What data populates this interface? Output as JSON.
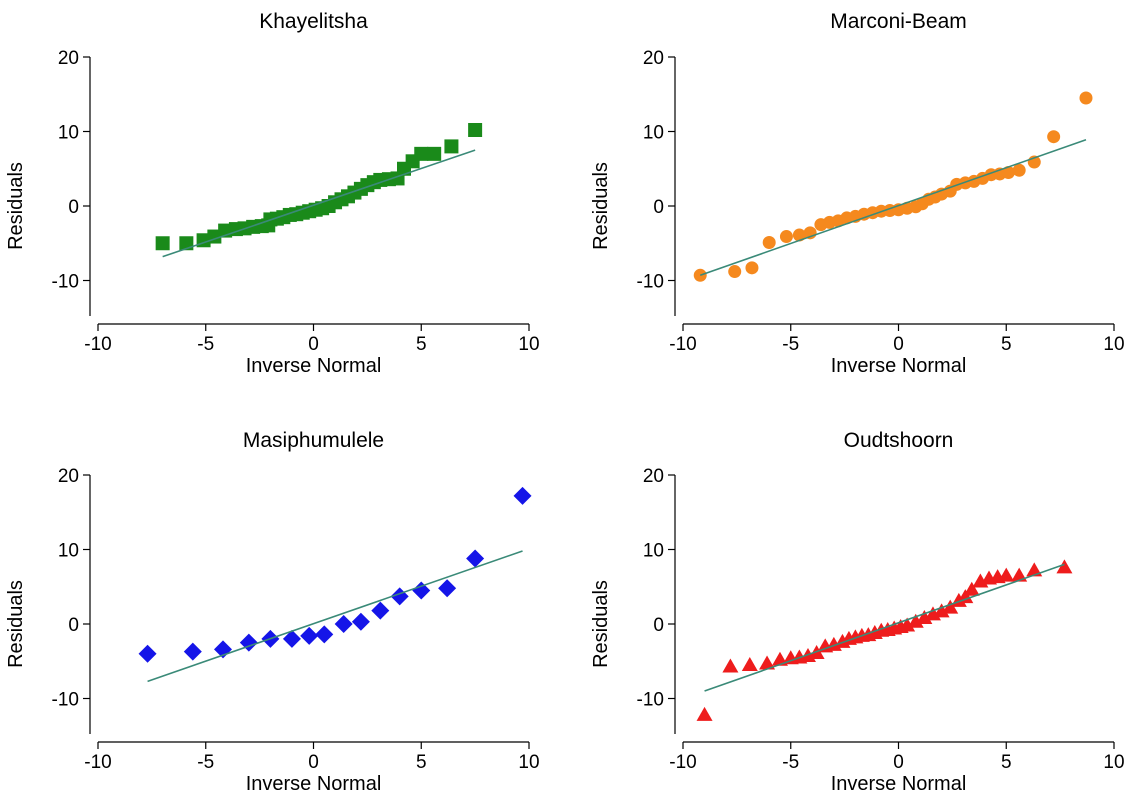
{
  "figure": {
    "fit_line_color": "#3a8a78"
  },
  "chart_data": [
    {
      "type": "scatter",
      "title": "Khayelitsha",
      "xlabel": "Inverse Normal",
      "ylabel": "Residuals",
      "xlim": [
        -10,
        10
      ],
      "ylim": [
        -10,
        20
      ],
      "xticks": [
        -10,
        -5,
        0,
        5,
        10
      ],
      "yticks": [
        -10,
        0,
        10,
        20
      ],
      "marker": "square",
      "color": "#1a8a1a",
      "fit_line": [
        [
          -7,
          -6.8
        ],
        [
          7.5,
          7.5
        ]
      ],
      "points": [
        [
          -7,
          -5
        ],
        [
          -5.9,
          -5
        ],
        [
          -5.1,
          -4.6
        ],
        [
          -4.6,
          -4.1
        ],
        [
          -4.1,
          -3.3
        ],
        [
          -3.6,
          -3.1
        ],
        [
          -3.2,
          -3
        ],
        [
          -2.8,
          -2.8
        ],
        [
          -2.4,
          -2.7
        ],
        [
          -2.1,
          -2.6
        ],
        [
          -2,
          -1.8
        ],
        [
          -1.7,
          -1.7
        ],
        [
          -1.4,
          -1.5
        ],
        [
          -1.1,
          -1.2
        ],
        [
          -0.8,
          -1.1
        ],
        [
          -0.5,
          -0.9
        ],
        [
          -0.2,
          -0.7
        ],
        [
          0.1,
          -0.5
        ],
        [
          0.4,
          -0.3
        ],
        [
          0.7,
          0
        ],
        [
          1,
          0.5
        ],
        [
          1.3,
          0.9
        ],
        [
          1.6,
          1.3
        ],
        [
          1.9,
          1.8
        ],
        [
          2.2,
          2.3
        ],
        [
          2.5,
          2.8
        ],
        [
          2.8,
          3.2
        ],
        [
          3.1,
          3.5
        ],
        [
          3.5,
          3.6
        ],
        [
          3.9,
          3.7
        ],
        [
          4.2,
          5
        ],
        [
          4.6,
          6
        ],
        [
          5,
          7
        ],
        [
          5.6,
          7
        ],
        [
          6.4,
          8
        ],
        [
          7.5,
          10.2
        ]
      ]
    },
    {
      "type": "scatter",
      "title": "Marconi-Beam",
      "xlabel": "Inverse Normal",
      "ylabel": "Residuals",
      "xlim": [
        -10,
        10
      ],
      "ylim": [
        -10,
        20
      ],
      "xticks": [
        -10,
        -5,
        0,
        5,
        10
      ],
      "yticks": [
        -10,
        0,
        10,
        20
      ],
      "marker": "circle",
      "color": "#f5891e",
      "fit_line": [
        [
          -9.2,
          -9.3
        ],
        [
          8.7,
          8.9
        ]
      ],
      "points": [
        [
          -9.2,
          -9.3
        ],
        [
          -7.6,
          -8.8
        ],
        [
          -6.8,
          -8.3
        ],
        [
          -6,
          -4.9
        ],
        [
          -5.2,
          -4.1
        ],
        [
          -4.6,
          -3.9
        ],
        [
          -4.1,
          -3.6
        ],
        [
          -3.6,
          -2.5
        ],
        [
          -3.2,
          -2.2
        ],
        [
          -2.8,
          -2
        ],
        [
          -2.4,
          -1.6
        ],
        [
          -2,
          -1.4
        ],
        [
          -1.6,
          -1.1
        ],
        [
          -1.2,
          -0.9
        ],
        [
          -0.8,
          -0.7
        ],
        [
          -0.4,
          -0.6
        ],
        [
          0,
          -0.5
        ],
        [
          0.4,
          -0.3
        ],
        [
          0.8,
          -0.1
        ],
        [
          1.1,
          0.3
        ],
        [
          1.4,
          0.9
        ],
        [
          1.7,
          1.2
        ],
        [
          2,
          1.6
        ],
        [
          2.4,
          2
        ],
        [
          2.7,
          2.9
        ],
        [
          3.1,
          3.1
        ],
        [
          3.5,
          3.3
        ],
        [
          3.9,
          3.7
        ],
        [
          4.3,
          4.2
        ],
        [
          4.7,
          4.3
        ],
        [
          5.1,
          4.5
        ],
        [
          5.6,
          4.8
        ],
        [
          6.3,
          5.9
        ],
        [
          7.2,
          9.3
        ],
        [
          8.7,
          14.5
        ]
      ]
    },
    {
      "type": "scatter",
      "title": "Masiphumulele",
      "xlabel": "Inverse Normal",
      "ylabel": "Residuals",
      "xlim": [
        -10,
        10
      ],
      "ylim": [
        -10,
        20
      ],
      "xticks": [
        -10,
        -5,
        0,
        5,
        10
      ],
      "yticks": [
        -10,
        0,
        10,
        20
      ],
      "marker": "diamond",
      "color": "#1515e8",
      "fit_line": [
        [
          -7.7,
          -7.7
        ],
        [
          9.7,
          9.8
        ]
      ],
      "points": [
        [
          -7.7,
          -4
        ],
        [
          -5.6,
          -3.7
        ],
        [
          -4.2,
          -3.4
        ],
        [
          -3,
          -2.5
        ],
        [
          -2,
          -2
        ],
        [
          -1,
          -2
        ],
        [
          -0.2,
          -1.6
        ],
        [
          0.5,
          -1.4
        ],
        [
          1.4,
          0
        ],
        [
          2.2,
          0.3
        ],
        [
          3.1,
          1.8
        ],
        [
          4,
          3.7
        ],
        [
          5,
          4.5
        ],
        [
          6.2,
          4.8
        ],
        [
          7.5,
          8.8
        ],
        [
          9.7,
          17.2
        ]
      ]
    },
    {
      "type": "scatter",
      "title": "Oudtshoorn",
      "xlabel": "Inverse Normal",
      "ylabel": "Residuals",
      "xlim": [
        -10,
        10
      ],
      "ylim": [
        -10,
        20
      ],
      "xticks": [
        -10,
        -5,
        0,
        5,
        10
      ],
      "yticks": [
        -10,
        0,
        10,
        20
      ],
      "marker": "triangle",
      "color": "#ee1c1c",
      "fit_line": [
        [
          -9,
          -9
        ],
        [
          7.7,
          8
        ]
      ],
      "points": [
        [
          -9,
          -12.2
        ],
        [
          -7.8,
          -5.7
        ],
        [
          -6.9,
          -5.5
        ],
        [
          -6.1,
          -5.3
        ],
        [
          -5.5,
          -4.8
        ],
        [
          -5,
          -4.6
        ],
        [
          -4.6,
          -4.5
        ],
        [
          -4.2,
          -4.3
        ],
        [
          -3.8,
          -3.9
        ],
        [
          -3.4,
          -3
        ],
        [
          -3,
          -2.8
        ],
        [
          -2.6,
          -2.4
        ],
        [
          -2.3,
          -2
        ],
        [
          -2,
          -1.8
        ],
        [
          -1.7,
          -1.6
        ],
        [
          -1.4,
          -1.5
        ],
        [
          -1.1,
          -1.2
        ],
        [
          -0.8,
          -0.9
        ],
        [
          -0.5,
          -0.8
        ],
        [
          -0.2,
          -0.6
        ],
        [
          0.1,
          -0.4
        ],
        [
          0.4,
          -0.2
        ],
        [
          0.8,
          0.3
        ],
        [
          1.2,
          0.8
        ],
        [
          1.6,
          1.3
        ],
        [
          2,
          1.7
        ],
        [
          2.4,
          2.2
        ],
        [
          2.8,
          3.1
        ],
        [
          3.1,
          3.6
        ],
        [
          3.4,
          4.6
        ],
        [
          3.8,
          5.7
        ],
        [
          4.2,
          6.1
        ],
        [
          4.6,
          6.3
        ],
        [
          5,
          6.5
        ],
        [
          5.6,
          6.5
        ],
        [
          6.3,
          7.2
        ],
        [
          7.7,
          7.6
        ]
      ]
    }
  ]
}
